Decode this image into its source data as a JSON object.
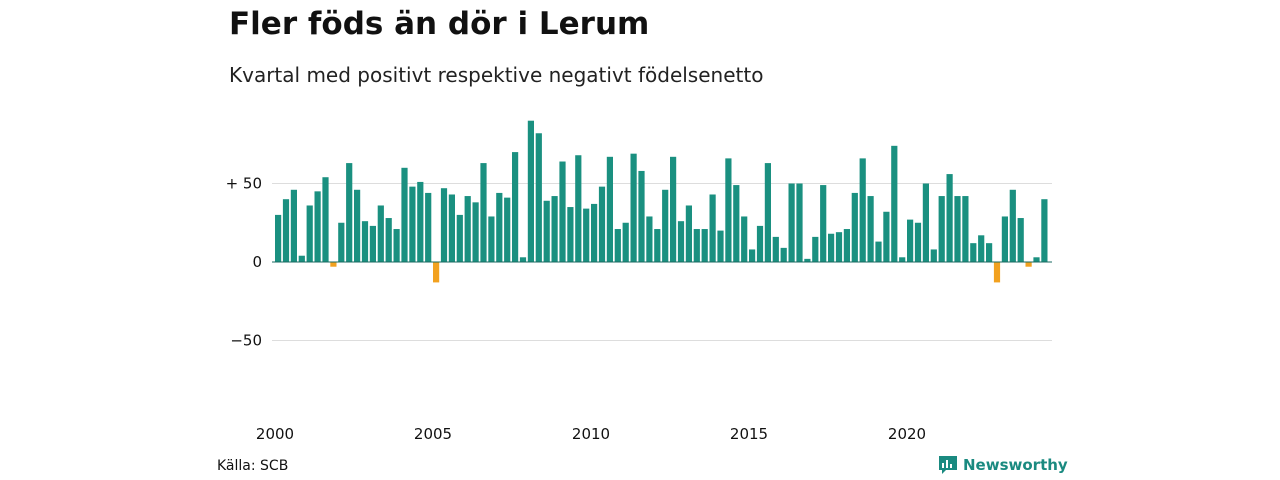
{
  "title": "Fler föds än dör i Lerum",
  "subtitle": "Kvartal med positivt respektive negativt födelsenetto",
  "source": "Källa: SCB",
  "brand": "Newsworthy",
  "colors": {
    "positive": "#1a9080",
    "negative": "#f2a11f",
    "grid": "#dddddd",
    "brand": "#1a8a80"
  },
  "chart_data": {
    "type": "bar",
    "y_ticks": [
      {
        "value": 50,
        "label": "+ 50"
      },
      {
        "value": 0,
        "label": "0"
      },
      {
        "value": -50,
        "label": "−50"
      }
    ],
    "ylim": [
      -50,
      90
    ],
    "x_ticks": [
      "2000",
      "2005",
      "2010",
      "2015",
      "2020"
    ],
    "x_start_year": 2000,
    "periods_per_year": 4,
    "grid": true,
    "values": [
      30,
      40,
      46,
      4,
      36,
      45,
      54,
      -3,
      25,
      63,
      46,
      26,
      23,
      36,
      28,
      21,
      60,
      48,
      51,
      44,
      -13,
      47,
      43,
      30,
      42,
      38,
      63,
      29,
      44,
      41,
      70,
      3,
      90,
      82,
      39,
      42,
      64,
      35,
      68,
      34,
      37,
      48,
      67,
      21,
      25,
      69,
      58,
      29,
      21,
      46,
      67,
      26,
      36,
      21,
      21,
      43,
      20,
      66,
      49,
      29,
      8,
      23,
      63,
      16,
      9,
      50,
      50,
      2,
      16,
      49,
      18,
      19,
      21,
      44,
      66,
      42,
      13,
      32,
      74,
      3,
      27,
      25,
      50,
      8,
      42,
      56,
      42,
      42,
      12,
      17,
      12,
      -13,
      29,
      46,
      28,
      -3,
      3,
      40
    ]
  }
}
